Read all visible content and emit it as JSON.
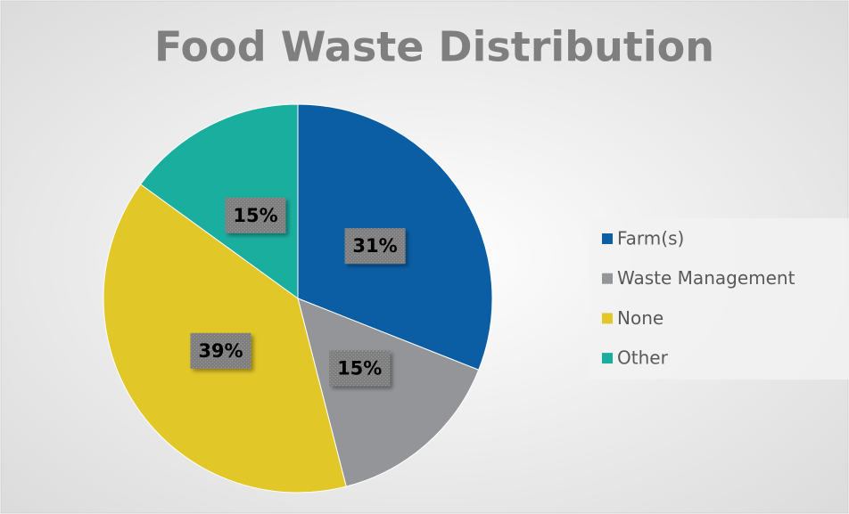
{
  "chart_data": {
    "type": "pie",
    "title": "Food Waste Distribution",
    "categories": [
      "Farm(s)",
      "Waste Management",
      "None",
      "Other"
    ],
    "values": [
      31,
      15,
      39,
      15
    ],
    "value_labels": [
      "31%",
      "15%",
      "39%",
      "15%"
    ],
    "colors": [
      "#0b5ea4",
      "#939598",
      "#e1c728",
      "#1aae9f"
    ],
    "legend": "right"
  }
}
